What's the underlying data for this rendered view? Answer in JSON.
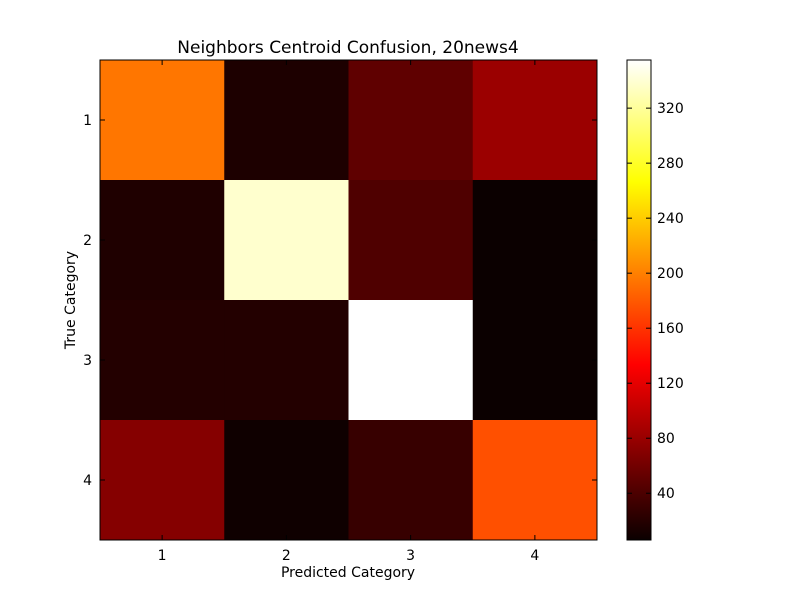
{
  "chart_data": {
    "type": "heatmap",
    "title": "Neighbors Centroid Confusion, 20news4",
    "xlabel": "Predicted Category",
    "ylabel": "True Category",
    "x_categories": [
      "1",
      "2",
      "3",
      "4"
    ],
    "y_categories": [
      "1",
      "2",
      "3",
      "4"
    ],
    "values": [
      [
        195,
        15,
        48,
        78
      ],
      [
        16,
        338,
        40,
        6
      ],
      [
        18,
        18,
        355,
        6
      ],
      [
        67,
        8,
        28,
        175
      ]
    ],
    "colormap": "hot",
    "colorbar": {
      "range": [
        6,
        355
      ],
      "ticks": [
        "40",
        "80",
        "120",
        "160",
        "200",
        "240",
        "280",
        "320"
      ]
    }
  }
}
